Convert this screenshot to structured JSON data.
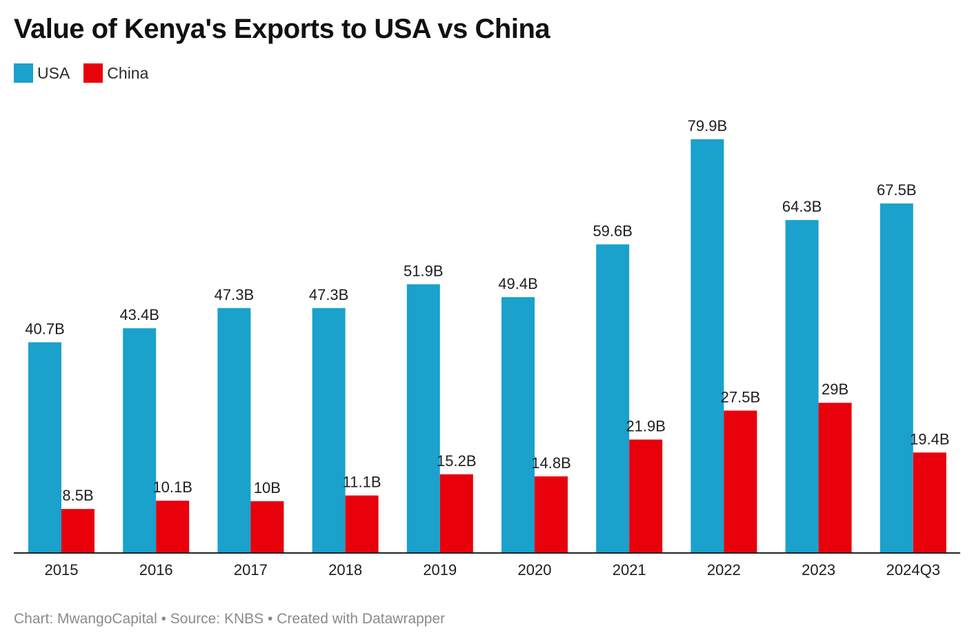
{
  "title": "Value of Kenya's Exports to USA vs China",
  "footer": "Chart: MwangoCapital • Source: KNBS • Created with Datawrapper",
  "chart_data": {
    "type": "bar",
    "title": "Value of Kenya's Exports to USA vs China",
    "xlabel": "",
    "ylabel": "",
    "categories": [
      "2015",
      "2016",
      "2017",
      "2018",
      "2019",
      "2020",
      "2021",
      "2022",
      "2023",
      "2024Q3"
    ],
    "series": [
      {
        "name": "USA",
        "color": "#1aa1cc",
        "values": [
          40.7,
          43.4,
          47.3,
          47.3,
          51.9,
          49.4,
          59.6,
          79.9,
          64.3,
          67.5
        ],
        "labels": [
          "40.7B",
          "43.4B",
          "47.3B",
          "47.3B",
          "51.9B",
          "49.4B",
          "59.6B",
          "79.9B",
          "64.3B",
          "67.5B"
        ]
      },
      {
        "name": "China",
        "color": "#e8000b",
        "values": [
          8.5,
          10.1,
          10,
          11.1,
          15.2,
          14.8,
          21.9,
          27.5,
          29,
          19.4
        ],
        "labels": [
          "8.5B",
          "10.1B",
          "10B",
          "11.1B",
          "15.2B",
          "14.8B",
          "21.9B",
          "27.5B",
          "29B",
          "19.4B"
        ]
      }
    ],
    "ylim": [
      0,
      80
    ],
    "grid": false,
    "legend": "top-left"
  }
}
